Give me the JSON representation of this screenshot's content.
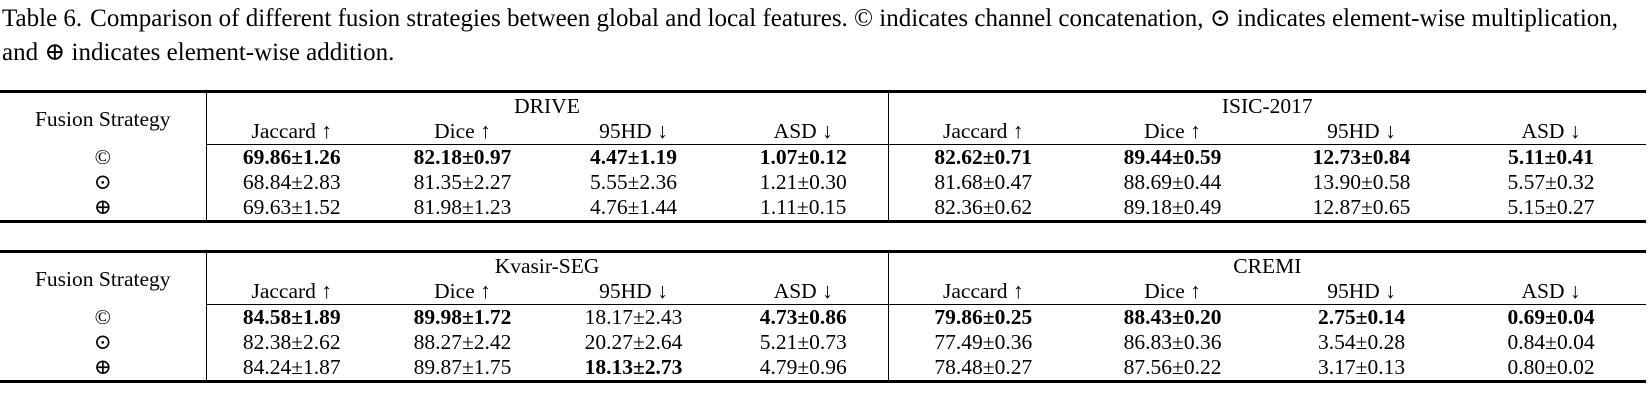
{
  "caption": {
    "label": "Table 6.",
    "text": "Comparison of different fusion strategies between global and local features. © indicates channel concatenation, ⊙ indicates element-wise multiplication, and ⊕ indicates element-wise addition."
  },
  "tables": [
    {
      "row_header": "Fusion Strategy",
      "datasets": [
        "DRIVE",
        "ISIC-2017"
      ],
      "metrics": [
        "Jaccard ↑",
        "Dice ↑",
        "95HD ↓",
        "ASD ↓",
        "Jaccard ↑",
        "Dice ↑",
        "95HD ↓",
        "ASD ↓"
      ],
      "rows": [
        {
          "label": "©",
          "values": [
            "69.86±1.26",
            "82.18±0.97",
            "4.47±1.19",
            "1.07±0.12",
            "82.62±0.71",
            "89.44±0.59",
            "12.73±0.84",
            "5.11±0.41"
          ],
          "bold": [
            true,
            true,
            true,
            true,
            true,
            true,
            true,
            true
          ]
        },
        {
          "label": "⊙",
          "values": [
            "68.84±2.83",
            "81.35±2.27",
            "5.55±2.36",
            "1.21±0.30",
            "81.68±0.47",
            "88.69±0.44",
            "13.90±0.58",
            "5.57±0.32"
          ],
          "bold": [
            false,
            false,
            false,
            false,
            false,
            false,
            false,
            false
          ]
        },
        {
          "label": "⊕",
          "values": [
            "69.63±1.52",
            "81.98±1.23",
            "4.76±1.44",
            "1.11±0.15",
            "82.36±0.62",
            "89.18±0.49",
            "12.87±0.65",
            "5.15±0.27"
          ],
          "bold": [
            false,
            false,
            false,
            false,
            false,
            false,
            false,
            false
          ]
        }
      ]
    },
    {
      "row_header": "Fusion Strategy",
      "datasets": [
        "Kvasir-SEG",
        "CREMI"
      ],
      "metrics": [
        "Jaccard ↑",
        "Dice ↑",
        "95HD ↓",
        "ASD ↓",
        "Jaccard ↑",
        "Dice ↑",
        "95HD ↓",
        "ASD ↓"
      ],
      "rows": [
        {
          "label": "©",
          "values": [
            "84.58±1.89",
            "89.98±1.72",
            "18.17±2.43",
            "4.73±0.86",
            "79.86±0.25",
            "88.43±0.20",
            "2.75±0.14",
            "0.69±0.04"
          ],
          "bold": [
            true,
            true,
            false,
            true,
            true,
            true,
            true,
            true
          ]
        },
        {
          "label": "⊙",
          "values": [
            "82.38±2.62",
            "88.27±2.42",
            "20.27±2.64",
            "5.21±0.73",
            "77.49±0.36",
            "86.83±0.36",
            "3.54±0.28",
            "0.84±0.04"
          ],
          "bold": [
            false,
            false,
            false,
            false,
            false,
            false,
            false,
            false
          ]
        },
        {
          "label": "⊕",
          "values": [
            "84.24±1.87",
            "89.87±1.75",
            "18.13±2.73",
            "4.79±0.96",
            "78.48±0.27",
            "87.56±0.22",
            "3.17±0.13",
            "0.80±0.02"
          ],
          "bold": [
            false,
            false,
            true,
            false,
            false,
            false,
            false,
            false
          ]
        }
      ]
    }
  ]
}
